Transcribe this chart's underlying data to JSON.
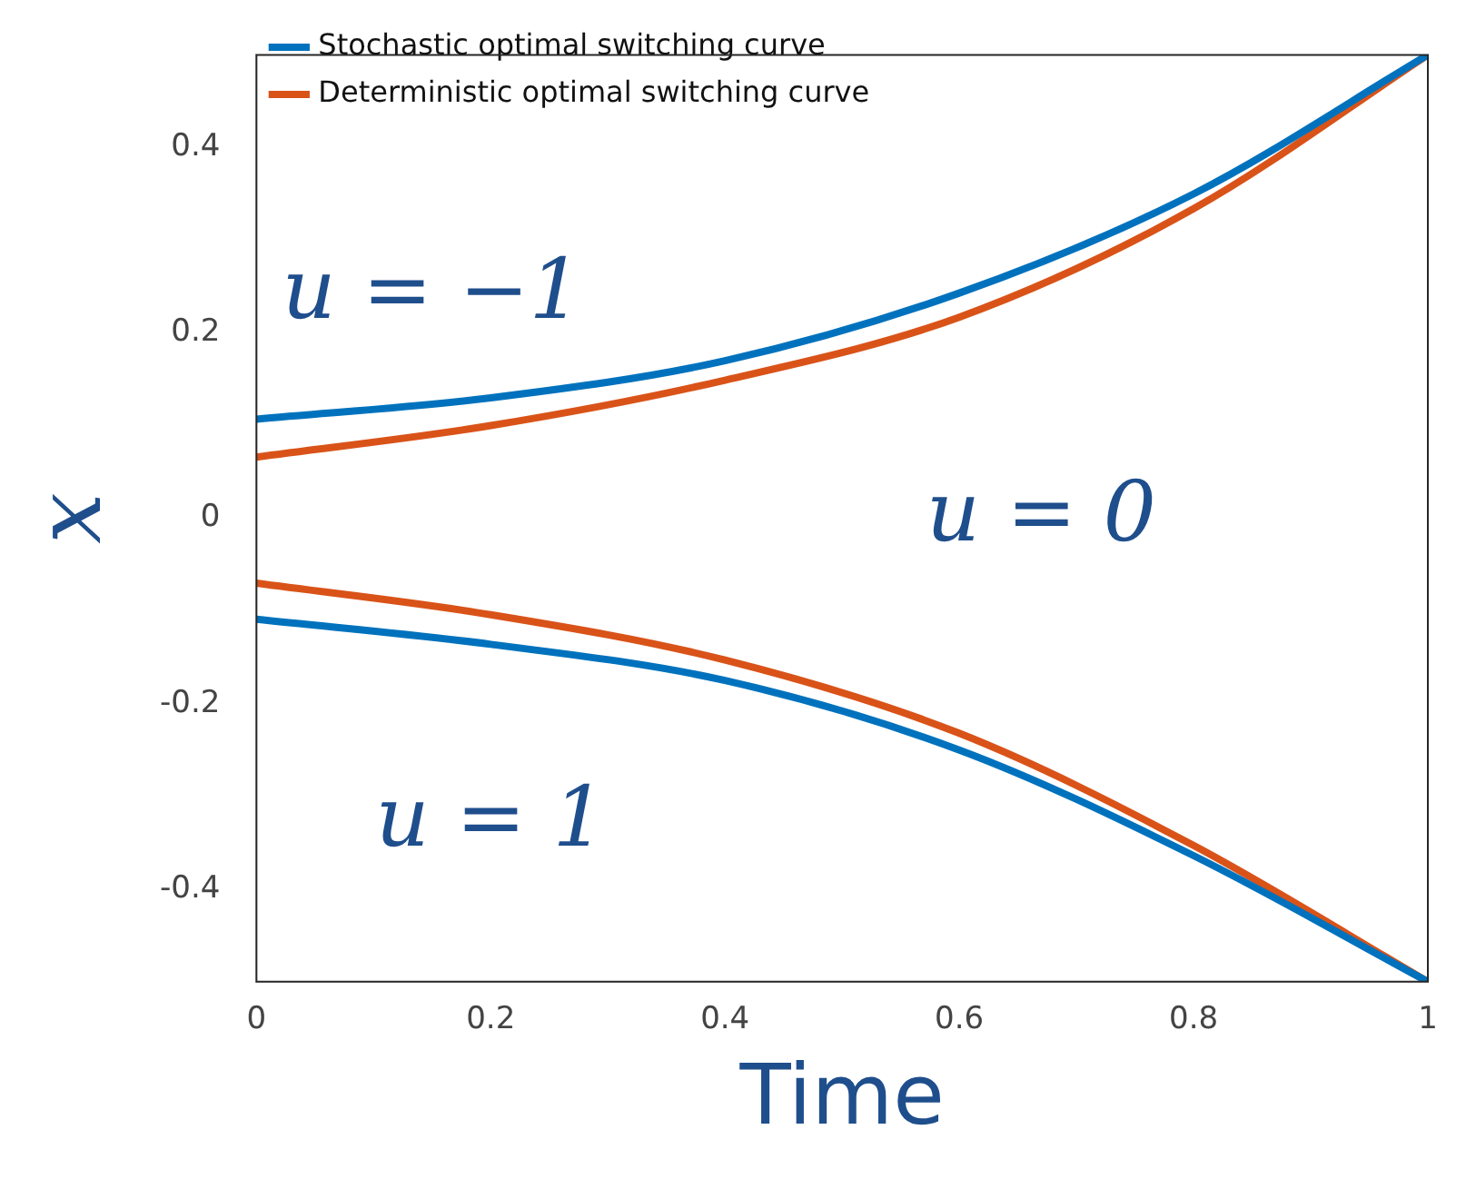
{
  "chart_data": {
    "type": "line",
    "xlabel": "Time",
    "ylabel": "x",
    "x": [
      0,
      0.2,
      0.4,
      0.6,
      0.8,
      1
    ],
    "series": [
      {
        "name": "Stochastic optimal switching curve",
        "color": "#0072bd",
        "values": [
          0.107,
          0.13,
          0.17,
          0.243,
          0.35,
          0.5
        ]
      },
      {
        "name": "Deterministic optimal switching curve",
        "color": "#d95319",
        "values": [
          0.066,
          0.1,
          0.149,
          0.217,
          0.334,
          0.5
        ]
      },
      {
        "color": "#0072bd",
        "values": [
          -0.109,
          -0.136,
          -0.175,
          -0.25,
          -0.364,
          -0.5
        ]
      },
      {
        "color": "#d95319",
        "values": [
          -0.07,
          -0.104,
          -0.153,
          -0.232,
          -0.353,
          -0.5
        ]
      }
    ],
    "xlim": [
      0,
      1
    ],
    "xticks": [
      0,
      0.2,
      0.4,
      0.6,
      0.8,
      1
    ],
    "ylim": [
      -0.5,
      0.5
    ],
    "yticks": [
      -0.4,
      -0.2,
      0,
      0.2,
      0.4
    ],
    "grid": false,
    "legend": "top left",
    "marker": "none",
    "line_style": "solid",
    "annotations": [
      "u = −1",
      "u = 0",
      "u = 1"
    ]
  }
}
